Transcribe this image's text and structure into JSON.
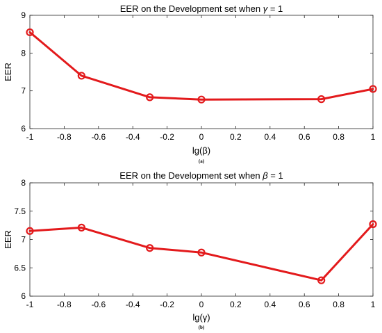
{
  "chart_data": [
    {
      "type": "line",
      "title": "EER on the Development set when γ = 1",
      "title_pre": "EER on the Development set when ",
      "title_sym": "γ",
      "title_post": " = 1",
      "xlabel_pre": "lg(",
      "xlabel_sym": "β",
      "xlabel_post": ")",
      "ylabel": "EER",
      "sub_label": "(a)",
      "xlim": [
        -1,
        1
      ],
      "ylim": [
        6,
        9
      ],
      "xticks": [
        -1,
        -0.8,
        -0.6,
        -0.4,
        -0.2,
        0,
        0.2,
        0.4,
        0.6,
        0.8,
        1
      ],
      "yticks": [
        6,
        7,
        8,
        9
      ],
      "xtick_labels": [
        "-1",
        "-0.8",
        "-0.6",
        "-0.4",
        "-0.2",
        "0",
        "0.2",
        "0.4",
        "0.6",
        "0.8",
        "1"
      ],
      "ytick_labels": [
        "6",
        "7",
        "8",
        "9"
      ],
      "grid": false,
      "color": "#e31a1c",
      "x": [
        -1,
        -0.699,
        -0.301,
        0,
        0.699,
        1
      ],
      "y": [
        8.55,
        7.4,
        6.83,
        6.77,
        6.78,
        7.05
      ]
    },
    {
      "type": "line",
      "title": "EER on the Development set when β = 1",
      "title_pre": "EER on the Development set when ",
      "title_sym": "β",
      "title_post": " = 1",
      "xlabel_pre": "lg(",
      "xlabel_sym": "γ",
      "xlabel_post": ")",
      "ylabel": "EER",
      "sub_label": "(b)",
      "xlim": [
        -1,
        1
      ],
      "ylim": [
        6,
        8
      ],
      "xticks": [
        -1,
        -0.8,
        -0.6,
        -0.4,
        -0.2,
        0,
        0.2,
        0.4,
        0.6,
        0.8,
        1
      ],
      "yticks": [
        6,
        6.5,
        7,
        7.5,
        8
      ],
      "xtick_labels": [
        "-1",
        "-0.8",
        "-0.6",
        "-0.4",
        "-0.2",
        "0",
        "0.2",
        "0.4",
        "0.6",
        "0.8",
        "1"
      ],
      "ytick_labels": [
        "6",
        "6.5",
        "7",
        "7.5",
        "8"
      ],
      "grid": false,
      "color": "#e31a1c",
      "x": [
        -1,
        -0.699,
        -0.301,
        0,
        0.699,
        1
      ],
      "y": [
        7.15,
        7.21,
        6.85,
        6.77,
        6.28,
        7.27
      ]
    }
  ]
}
